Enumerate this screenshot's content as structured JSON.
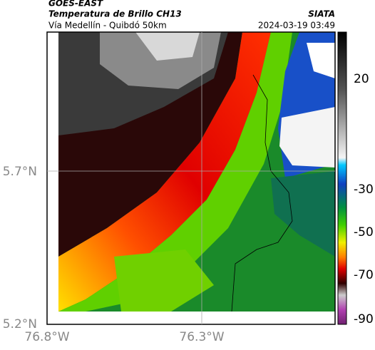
{
  "header": {
    "title": "GOES-EAST",
    "subtitle": "Temperatura de Brillo CH13",
    "route": "Vía Medellín - Quibdó 50km",
    "source": "SIATA",
    "timestamp": "2024-03-19 03:49"
  },
  "map": {
    "lat_labels": [
      "5.7°N",
      "5.2°N"
    ],
    "lon_labels": [
      "76.8°W",
      "76.3°W"
    ]
  },
  "colorbar": {
    "labels": [
      "20",
      "-30",
      "-50",
      "-70",
      "-90"
    ]
  }
}
